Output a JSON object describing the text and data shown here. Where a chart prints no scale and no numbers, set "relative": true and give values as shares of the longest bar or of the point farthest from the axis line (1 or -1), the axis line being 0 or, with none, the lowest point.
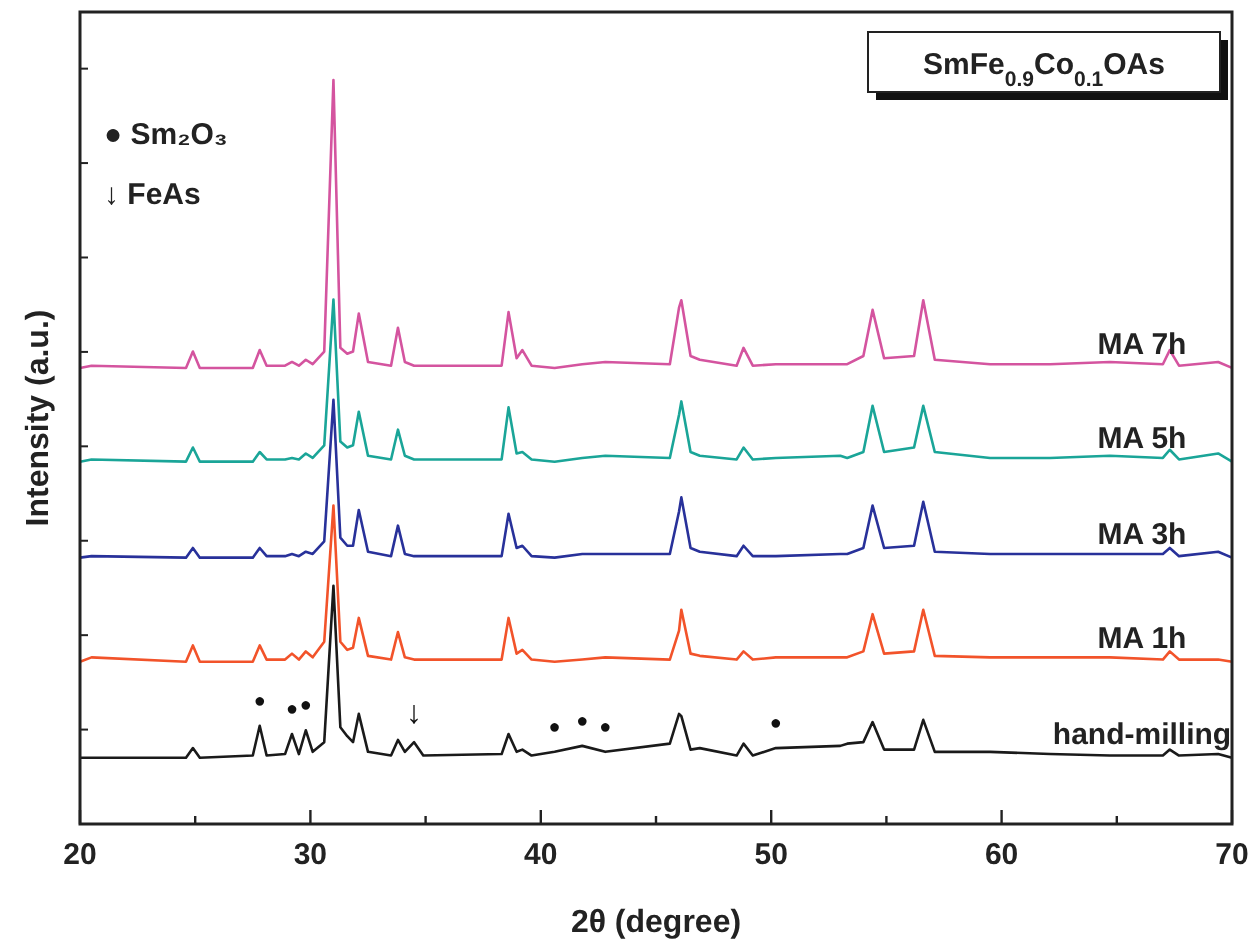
{
  "chart_data": {
    "type": "line",
    "relative": true,
    "title": "SmFe$_{0.9}$Co$_{0.1}$OAs",
    "xlabel": "2θ (degree)",
    "ylabel": "Intensity (a.u.)",
    "xlim": [
      20,
      70
    ],
    "xticks": [
      20,
      {
        "value": 25,
        "label": null
      },
      30,
      {
        "value": 35,
        "label": null
      },
      40,
      {
        "value": 45,
        "label": null
      },
      50,
      {
        "value": 55,
        "label": null
      },
      60,
      {
        "value": 65,
        "label": null
      },
      70
    ],
    "x": [
      20,
      20.5,
      24.6,
      24.9,
      25.2,
      27.5,
      27.8,
      28.1,
      28.9,
      29.2,
      29.5,
      29.8,
      30.1,
      30.6,
      31.0,
      31.3,
      31.6,
      31.85,
      32.1,
      32.5,
      33.5,
      33.8,
      34.1,
      34.5,
      34.9,
      38.3,
      38.6,
      38.95,
      39.2,
      39.6,
      40.6,
      41.8,
      42.8,
      45.6,
      46.0,
      46.1,
      46.5,
      46.9,
      48.5,
      48.8,
      49.2,
      50.2,
      53.0,
      53.3,
      54.0,
      54.4,
      54.9,
      56.2,
      56.6,
      57.1,
      59.5,
      62.1,
      64.7,
      67.0,
      67.3,
      67.7,
      69.4,
      70
    ],
    "series": [
      {
        "name": "MA 7h",
        "color": "#d4549f",
        "values": [
          0.613,
          0.616,
          0.613,
          0.635,
          0.613,
          0.613,
          0.637,
          0.616,
          0.616,
          0.621,
          0.616,
          0.624,
          0.618,
          0.635,
          1,
          0.64,
          0.632,
          0.635,
          0.686,
          0.621,
          0.616,
          0.667,
          0.621,
          0.616,
          0.616,
          0.616,
          0.688,
          0.626,
          0.637,
          0.616,
          0.613,
          0.618,
          0.621,
          0.618,
          0.694,
          0.704,
          0.629,
          0.624,
          0.616,
          0.64,
          0.616,
          0.618,
          0.618,
          0.618,
          0.629,
          0.691,
          0.626,
          0.629,
          0.704,
          0.624,
          0.618,
          0.618,
          0.621,
          0.618,
          0.637,
          0.616,
          0.621,
          0.613
        ]
      },
      {
        "name": "MA 5h",
        "color": "#1aa598",
        "values": [
          0.487,
          0.49,
          0.487,
          0.506,
          0.487,
          0.487,
          0.5,
          0.49,
          0.49,
          0.492,
          0.49,
          0.498,
          0.492,
          0.509,
          0.705,
          0.514,
          0.506,
          0.509,
          0.554,
          0.495,
          0.49,
          0.53,
          0.495,
          0.49,
          0.49,
          0.49,
          0.56,
          0.498,
          0.5,
          0.49,
          0.487,
          0.492,
          0.495,
          0.492,
          0.55,
          0.568,
          0.5,
          0.495,
          0.49,
          0.506,
          0.49,
          0.492,
          0.495,
          0.492,
          0.5,
          0.562,
          0.5,
          0.506,
          0.562,
          0.5,
          0.492,
          0.492,
          0.495,
          0.492,
          0.503,
          0.49,
          0.498,
          0.487
        ]
      },
      {
        "name": "MA 3h",
        "color": "#28319a",
        "values": [
          0.358,
          0.36,
          0.358,
          0.371,
          0.358,
          0.358,
          0.371,
          0.36,
          0.36,
          0.363,
          0.36,
          0.366,
          0.363,
          0.38,
          0.57,
          0.385,
          0.374,
          0.374,
          0.422,
          0.366,
          0.36,
          0.401,
          0.363,
          0.36,
          0.36,
          0.36,
          0.417,
          0.371,
          0.374,
          0.36,
          0.358,
          0.363,
          0.363,
          0.363,
          0.42,
          0.439,
          0.371,
          0.366,
          0.36,
          0.374,
          0.36,
          0.36,
          0.363,
          0.363,
          0.371,
          0.428,
          0.371,
          0.374,
          0.433,
          0.366,
          0.363,
          0.363,
          0.363,
          0.363,
          0.371,
          0.36,
          0.366,
          0.358
        ]
      },
      {
        "name": "MA 1h",
        "color": "#f2532a",
        "values": [
          0.218,
          0.224,
          0.218,
          0.24,
          0.218,
          0.218,
          0.24,
          0.221,
          0.221,
          0.229,
          0.221,
          0.232,
          0.224,
          0.245,
          0.428,
          0.245,
          0.234,
          0.237,
          0.277,
          0.226,
          0.221,
          0.258,
          0.224,
          0.221,
          0.221,
          0.221,
          0.277,
          0.229,
          0.234,
          0.221,
          0.218,
          0.221,
          0.224,
          0.221,
          0.26,
          0.288,
          0.229,
          0.226,
          0.221,
          0.232,
          0.221,
          0.224,
          0.224,
          0.224,
          0.232,
          0.282,
          0.229,
          0.232,
          0.288,
          0.226,
          0.224,
          0.224,
          0.224,
          0.221,
          0.232,
          0.221,
          0.221,
          0.218
        ]
      },
      {
        "name": "hand-milling",
        "color": "#1a1a1a",
        "values": [
          0.089,
          0.089,
          0.089,
          0.102,
          0.089,
          0.092,
          0.132,
          0.092,
          0.094,
          0.121,
          0.094,
          0.126,
          0.097,
          0.11,
          0.32,
          0.13,
          0.118,
          0.11,
          0.148,
          0.097,
          0.092,
          0.113,
          0.097,
          0.11,
          0.092,
          0.094,
          0.121,
          0.097,
          0.1,
          0.092,
          0.097,
          0.105,
          0.097,
          0.108,
          0.148,
          0.145,
          0.1,
          0.102,
          0.092,
          0.108,
          0.092,
          0.102,
          0.105,
          0.108,
          0.11,
          0.137,
          0.1,
          0.1,
          0.14,
          0.097,
          0.097,
          0.094,
          0.092,
          0.092,
          0.1,
          0.092,
          0.094,
          0.089
        ]
      }
    ],
    "annotations": [
      "● Sm₂O₃",
      "↓ FeAs",
      {
        "text": "●",
        "x": 27.8,
        "y": 0.132
      },
      {
        "text": "●",
        "x": 29.2,
        "y": 0.121
      },
      {
        "text": "●",
        "x": 29.8,
        "y": 0.126
      },
      {
        "text": "↓",
        "x": 34.5,
        "y": 0.11
      },
      {
        "text": "●",
        "x": 40.6,
        "y": 0.097
      },
      {
        "text": "●",
        "x": 41.8,
        "y": 0.105
      },
      {
        "text": "●",
        "x": 42.8,
        "y": 0.097
      },
      {
        "text": "●",
        "x": 50.2,
        "y": 0.102
      }
    ]
  }
}
